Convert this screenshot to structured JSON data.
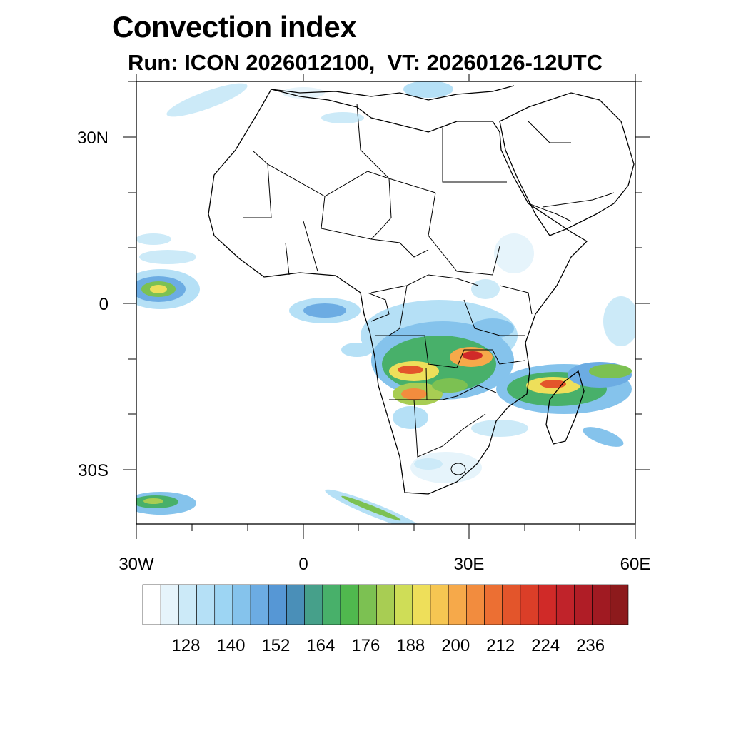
{
  "title": "Convection index",
  "subtitle": "Run: ICON 2026012100,  VT: 20260126-12UTC",
  "axes": {
    "lat_labels": [
      "30N",
      "0",
      "30S"
    ],
    "lon_labels": [
      "30W",
      "0",
      "30E",
      "60E"
    ],
    "lon_range": [
      -30,
      60
    ],
    "lat_range": [
      -40,
      40
    ]
  },
  "colorbar": {
    "labels": [
      "128",
      "140",
      "152",
      "164",
      "176",
      "188",
      "200",
      "212",
      "224",
      "236"
    ],
    "colors": [
      "#ffffff",
      "#e6f4fb",
      "#cceaf8",
      "#b5e0f6",
      "#9dd5f3",
      "#85c3ec",
      "#6cace3",
      "#5697d5",
      "#4a8fb8",
      "#46a08a",
      "#48b06a",
      "#50b84e",
      "#7cc152",
      "#a8cd53",
      "#cfdd57",
      "#eedf5a",
      "#f6c652",
      "#f6a94a",
      "#f28c3e",
      "#ec6f33",
      "#e3552b",
      "#db3e28",
      "#d02a28",
      "#c0232a",
      "#b01d26",
      "#a01a22",
      "#8d1a1c"
    ]
  },
  "legend": {
    "variable": "Convection index",
    "model": "ICON",
    "run": "2026012100",
    "valid_time": "20260126-12UTC"
  }
}
